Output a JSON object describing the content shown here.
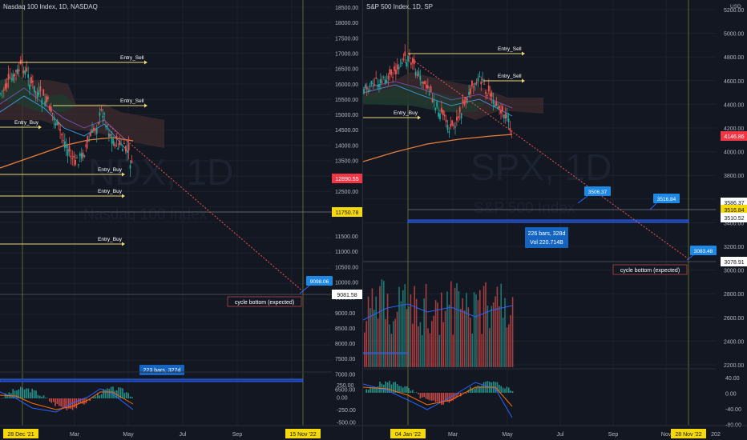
{
  "colors": {
    "background": "#131722",
    "grid": "#1e222d",
    "axis_text": "#b2b5be",
    "candle_up": "#26a69a",
    "candle_down": "#ef5350",
    "entry_line": "#e8d67c",
    "ema": "#e67e3a",
    "trendline": "#ef5350",
    "range_box": "#2962ff",
    "price_tag_red": "#f23645",
    "price_tag_yellow": "#f5d90a",
    "info_blue": "#1e88e5",
    "macd_line": "#2962ff",
    "signal_line": "#ff6d00"
  },
  "left_chart": {
    "header": "Nasdaq 100 Index, 1D, NASDAQ",
    "watermark": "NDX, 1D",
    "watermark_sub": "Nasdaq 100 Index",
    "price_axis": [
      "18500.00",
      "18000.00",
      "17500.00",
      "17000.00",
      "16500.00",
      "16000.00",
      "15500.00",
      "15000.00",
      "14500.00",
      "14000.00",
      "13500.00",
      "13000.00",
      "12500.00",
      "11500.00",
      "11000.00",
      "10500.00",
      "10000.00",
      "9500.00",
      "9000.00",
      "8500.00",
      "8000.00",
      "7500.00",
      "7000.00",
      "6500.00"
    ],
    "macd_axis": [
      "250.00",
      "0.00",
      "-250.00",
      "-500.00"
    ],
    "price_tags": {
      "current": "12890.55",
      "level": "11750.78",
      "target": "9081.58"
    },
    "entries": {
      "sell_1": "Entry_Sell",
      "sell_2": "Entry_Sell",
      "buy_1": "Entry_Buy",
      "buy_2": "Entry_Buy",
      "buy_3": "Entry_Buy",
      "buy_4": "Entry_Buy"
    },
    "callout_price": "9098.06",
    "cycle_label": "cycle bottom (expected)",
    "range_label": "223 bars, 327d",
    "time_axis": [
      "Mar",
      "May",
      "Jul",
      "Sep"
    ],
    "date_start": "28 Dec '21",
    "date_end": "15 Nov '22"
  },
  "right_chart": {
    "header": "S&P 500 Index, 1D, SP",
    "watermark": "SPX, 1D",
    "watermark_sub": "S&P 500 Index",
    "currency": "USD",
    "price_axis": [
      "5200.00",
      "5000.00",
      "4800.00",
      "4600.00",
      "4400.00",
      "4200.00",
      "4000.00",
      "3800.00",
      "3600.00",
      "3400.00",
      "3200.00",
      "3000.00",
      "2800.00",
      "2600.00",
      "2400.00",
      "2200.00"
    ],
    "macd_axis": [
      "40.00",
      "0.00",
      "-40.00",
      "-80.00"
    ],
    "price_tags": {
      "current": "4146.86",
      "level_1": "3586.37",
      "level_2": "3516.84",
      "level_3": "3510.52",
      "target": "3078.91"
    },
    "entries": {
      "sell_1": "Entry_Sell",
      "sell_2": "Entry_Sell",
      "buy_1": "Entry_Buy"
    },
    "callouts": {
      "a": "3506.37",
      "b": "3516.84",
      "c": "3083.48"
    },
    "cycle_label": "cycle bottom (expected)",
    "range_label_1": "226 bars, 328d",
    "range_label_2": "Vol 220.714B",
    "time_axis": [
      "Mar",
      "May",
      "Jul",
      "Sep",
      "Nov",
      "202"
    ],
    "date_start": "04 Jan '22",
    "date_end": "28 Nov '22"
  },
  "chart_data": [
    {
      "type": "candlestick",
      "title": "Nasdaq 100 Index, 1D, NASDAQ",
      "ylabel": "",
      "ylim": [
        6500,
        18500
      ],
      "x_range": [
        "2021-12-28",
        "2022-11-15"
      ],
      "ohlc_close_path": [
        {
          "x": "2021-11",
          "y": 15900
        },
        {
          "x": "2021-12-28",
          "y": 16600
        },
        {
          "x": "2022-01-20",
          "y": 14800
        },
        {
          "x": "2022-02-10",
          "y": 14600
        },
        {
          "x": "2022-03-08",
          "y": 13100
        },
        {
          "x": "2022-03-29",
          "y": 15200
        },
        {
          "x": "2022-04-20",
          "y": 13900
        },
        {
          "x": "2022-05-12",
          "y": 12300
        },
        {
          "x": "2022-05-18",
          "y": 12890.55
        }
      ],
      "levels": {
        "entry_sell": [
          16600,
          15200
        ],
        "entry_buy": [
          14600,
          12700,
          12400,
          11000
        ],
        "support": 11750.78
      },
      "projection": {
        "from": {
          "x": "2022-03-29",
          "y": 15000
        },
        "to": {
          "x": "2022-11-15",
          "y": 9081.58
        },
        "label": "cycle bottom (expected)"
      },
      "range": {
        "bars": 223,
        "days": 327
      }
    },
    {
      "type": "candlestick",
      "title": "S&P 500 Index, 1D, SP",
      "ylabel": "USD",
      "ylim": [
        2200,
        5200
      ],
      "x_range": [
        "2022-01-04",
        "2022-11-28"
      ],
      "ohlc_close_path": [
        {
          "x": "2021-11",
          "y": 4650
        },
        {
          "x": "2022-01-04",
          "y": 4800
        },
        {
          "x": "2022-02-10",
          "y": 4450
        },
        {
          "x": "2022-03-08",
          "y": 4170
        },
        {
          "x": "2022-03-29",
          "y": 4630
        },
        {
          "x": "2022-04-20",
          "y": 4400
        },
        {
          "x": "2022-05-12",
          "y": 3930
        },
        {
          "x": "2022-05-18",
          "y": 4146.86
        }
      ],
      "levels": {
        "entry_sell": [
          4800,
          4590
        ],
        "entry_buy": [
          4280
        ],
        "levels": [
          3586.37,
          3516.84,
          3510.52
        ]
      },
      "projection": {
        "from": {
          "x": "2022-01-04",
          "y": 4800
        },
        "to": {
          "x": "2022-11-28",
          "y": 3078.91
        },
        "label": "cycle bottom (expected)"
      },
      "range": {
        "bars": 226,
        "days": 328,
        "volume": "220.714B"
      }
    }
  ]
}
